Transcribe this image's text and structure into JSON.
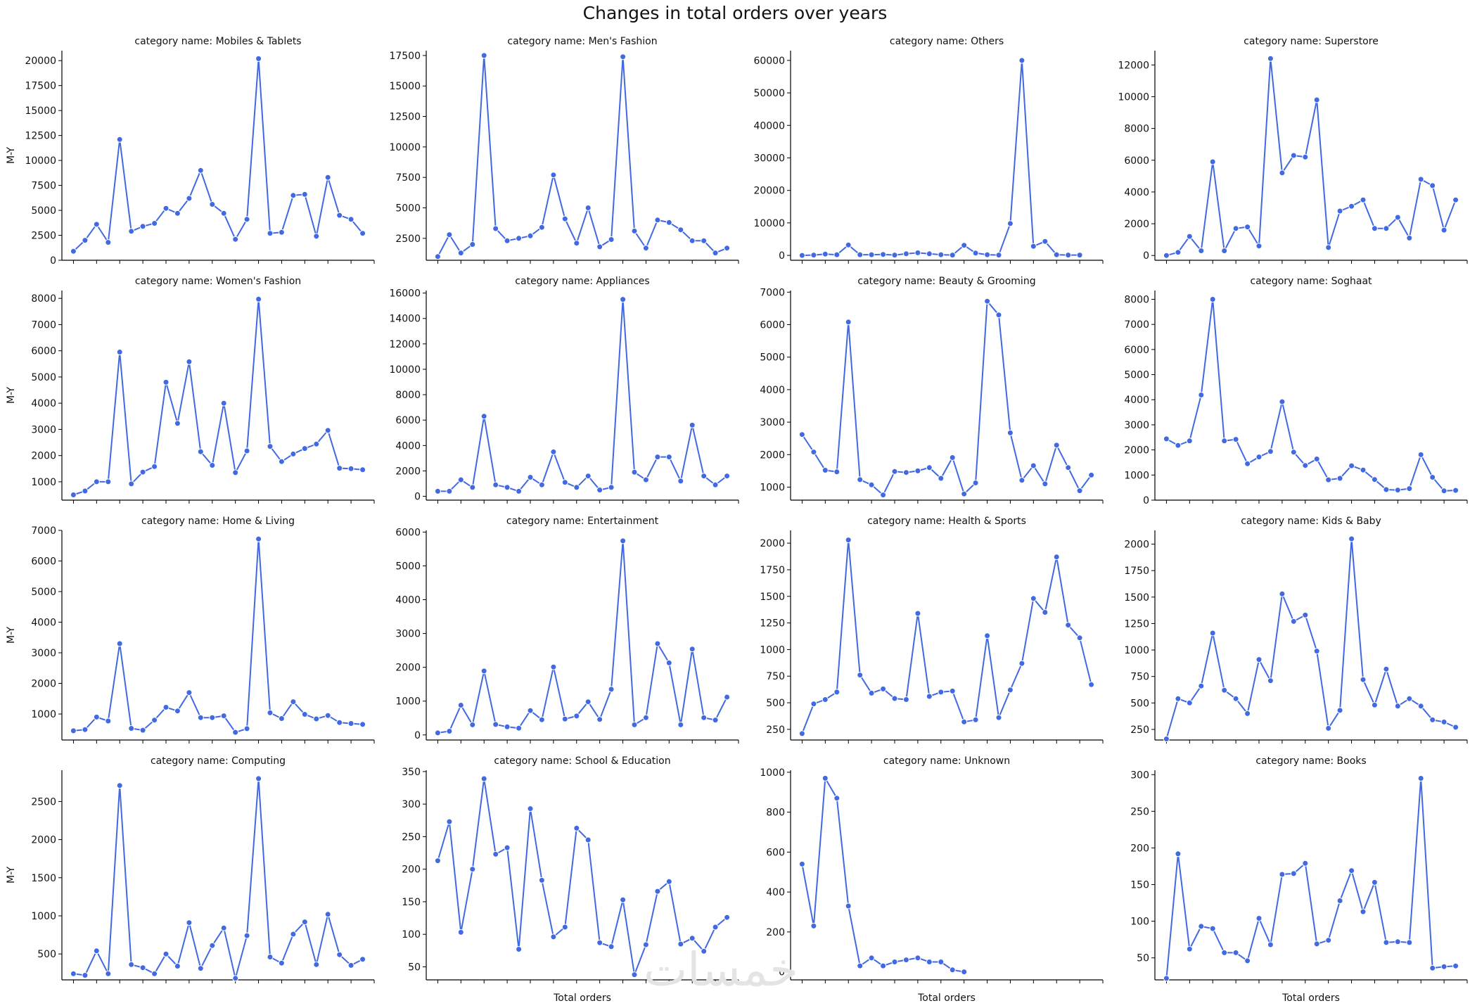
{
  "suptitle": "Changes in total orders over years",
  "watermark": "خمسات",
  "style": {
    "line_color": "#4169e1",
    "axis_color": "#000000"
  },
  "chart_data": [
    {
      "type": "line",
      "title": "category name: Mobiles & Tablets",
      "xlabel": "",
      "ylabel": "M-Y",
      "ylim": [
        0,
        21000
      ],
      "yticks": [
        0,
        2500,
        5000,
        7500,
        10000,
        12500,
        15000,
        17500,
        20000
      ],
      "values": [
        900,
        2000,
        3600,
        1800,
        12100,
        2900,
        3400,
        3700,
        5200,
        4700,
        6200,
        9000,
        5600,
        4700,
        2100,
        4100,
        20200,
        2700,
        2800,
        6500,
        6600,
        2400,
        8300,
        4500,
        4100,
        2700
      ]
    },
    {
      "type": "line",
      "title": "category name: Men's Fashion",
      "xlabel": "",
      "ylabel": "",
      "ylim": [
        700,
        17900
      ],
      "yticks": [
        2500,
        5000,
        7500,
        10000,
        12500,
        15000,
        17500
      ],
      "values": [
        1000,
        2800,
        1300,
        2000,
        17500,
        3300,
        2300,
        2500,
        2700,
        3400,
        7700,
        4100,
        2100,
        5000,
        1800,
        2400,
        17400,
        3100,
        1700,
        4000,
        3800,
        3200,
        2300,
        2300,
        1300,
        1700
      ]
    },
    {
      "type": "line",
      "title": "category name: Others",
      "xlabel": "",
      "ylabel": "",
      "ylim": [
        -1500,
        63000
      ],
      "yticks": [
        0,
        10000,
        20000,
        30000,
        40000,
        50000,
        60000
      ],
      "values": [
        0,
        100,
        400,
        200,
        3200,
        200,
        200,
        300,
        100,
        500,
        800,
        500,
        200,
        100,
        3100,
        700,
        200,
        100,
        9800,
        60000,
        2800,
        4300,
        200,
        100,
        100
      ]
    },
    {
      "type": "line",
      "title": "category name: Superstore",
      "xlabel": "",
      "ylabel": "",
      "ylim": [
        -300,
        12900
      ],
      "yticks": [
        0,
        2000,
        4000,
        6000,
        8000,
        10000,
        12000
      ],
      "values": [
        0,
        200,
        1200,
        300,
        5900,
        300,
        1700,
        1800,
        600,
        12400,
        5200,
        6300,
        6200,
        9800,
        500,
        2800,
        3100,
        3500,
        1700,
        1700,
        2400,
        1100,
        4800,
        4400,
        1600,
        3500
      ]
    },
    {
      "type": "line",
      "title": "category name: Women's Fashion",
      "xlabel": "",
      "ylabel": "M-Y",
      "ylim": [
        300,
        8300
      ],
      "yticks": [
        1000,
        2000,
        3000,
        4000,
        5000,
        6000,
        7000,
        8000
      ],
      "values": [
        500,
        650,
        1000,
        1000,
        5950,
        920,
        1370,
        1580,
        4800,
        3230,
        5580,
        2150,
        1630,
        4000,
        1350,
        2180,
        7970,
        2350,
        1770,
        2060,
        2270,
        2440,
        2960,
        1520,
        1500,
        1460
      ]
    },
    {
      "type": "line",
      "title": "category name: Appliances",
      "xlabel": "",
      "ylabel": "",
      "ylim": [
        -300,
        16200
      ],
      "yticks": [
        0,
        2000,
        4000,
        6000,
        8000,
        10000,
        12000,
        14000,
        16000
      ],
      "values": [
        400,
        400,
        1300,
        700,
        6300,
        900,
        700,
        400,
        1500,
        900,
        3500,
        1100,
        700,
        1600,
        500,
        700,
        15500,
        1900,
        1300,
        3100,
        3100,
        1200,
        5600,
        1600,
        900,
        1600
      ]
    },
    {
      "type": "line",
      "title": "category name: Beauty & Grooming",
      "xlabel": "",
      "ylabel": "",
      "ylim": [
        600,
        7050
      ],
      "yticks": [
        1000,
        2000,
        3000,
        4000,
        5000,
        6000,
        7000
      ],
      "values": [
        2620,
        2080,
        1520,
        1470,
        6080,
        1230,
        1070,
        760,
        1480,
        1450,
        1500,
        1600,
        1270,
        1910,
        790,
        1130,
        6720,
        6300,
        2670,
        1210,
        1660,
        1100,
        2290,
        1600,
        890,
        1370
      ]
    },
    {
      "type": "line",
      "title": "category name: Soghaat",
      "xlabel": "",
      "ylabel": "",
      "ylim": [
        0,
        8350
      ],
      "yticks": [
        0,
        1000,
        2000,
        3000,
        4000,
        5000,
        6000,
        7000,
        8000
      ],
      "values": [
        2440,
        2180,
        2360,
        4190,
        8000,
        2360,
        2420,
        1450,
        1720,
        1940,
        3920,
        1910,
        1380,
        1640,
        810,
        870,
        1370,
        1200,
        820,
        420,
        400,
        460,
        1810,
        910,
        370,
        390
      ]
    },
    {
      "type": "line",
      "title": "category name: Home & Living",
      "xlabel": "",
      "ylabel": "M-Y",
      "ylim": [
        150,
        7000
      ],
      "yticks": [
        1000,
        2000,
        3000,
        4000,
        5000,
        6000,
        7000
      ],
      "values": [
        450,
        490,
        900,
        770,
        3300,
        530,
        470,
        800,
        1220,
        1100,
        1700,
        880,
        880,
        940,
        400,
        520,
        6720,
        1040,
        850,
        1400,
        990,
        840,
        950,
        720,
        690,
        660
      ]
    },
    {
      "type": "line",
      "title": "category name: Entertainment",
      "xlabel": "",
      "ylabel": "",
      "ylim": [
        -150,
        6050
      ],
      "yticks": [
        0,
        1000,
        2000,
        3000,
        4000,
        5000,
        6000
      ],
      "values": [
        60,
        110,
        880,
        300,
        1890,
        310,
        240,
        200,
        720,
        450,
        2010,
        470,
        560,
        980,
        460,
        1350,
        5740,
        300,
        510,
        2700,
        2130,
        300,
        2540,
        510,
        440,
        1120
      ]
    },
    {
      "type": "line",
      "title": "category name: Health & Sports",
      "xlabel": "",
      "ylabel": "",
      "ylim": [
        150,
        2120
      ],
      "yticks": [
        250,
        500,
        750,
        1000,
        1250,
        1500,
        1750,
        2000
      ],
      "values": [
        210,
        490,
        530,
        600,
        2030,
        760,
        590,
        630,
        540,
        530,
        1340,
        560,
        600,
        610,
        320,
        340,
        1130,
        360,
        620,
        870,
        1480,
        1350,
        1870,
        1230,
        1110,
        670
      ]
    },
    {
      "type": "line",
      "title": "category name: Kids & Baby",
      "xlabel": "",
      "ylabel": "",
      "ylim": [
        150,
        2130
      ],
      "yticks": [
        250,
        500,
        750,
        1000,
        1250,
        1500,
        1750,
        2000
      ],
      "values": [
        160,
        540,
        500,
        660,
        1160,
        620,
        540,
        400,
        910,
        710,
        1530,
        1270,
        1330,
        990,
        260,
        430,
        2050,
        720,
        480,
        820,
        470,
        540,
        470,
        340,
        320,
        270
      ]
    },
    {
      "type": "line",
      "title": "category name: Computing",
      "xlabel": "",
      "ylabel": "M-Y",
      "ylim": [
        160,
        2910
      ],
      "yticks": [
        500,
        1000,
        1500,
        2000,
        2500
      ],
      "values": [
        240,
        220,
        540,
        240,
        2710,
        360,
        320,
        240,
        500,
        340,
        910,
        310,
        610,
        840,
        180,
        740,
        2800,
        460,
        380,
        760,
        920,
        360,
        1020,
        490,
        350,
        430
      ]
    },
    {
      "type": "line",
      "title": "category name: School & Education",
      "xlabel": "Total orders",
      "ylabel": "",
      "ylim": [
        30,
        352
      ],
      "yticks": [
        50,
        100,
        150,
        200,
        250,
        300,
        350
      ],
      "values": [
        213,
        273,
        103,
        200,
        339,
        223,
        233,
        77,
        293,
        183,
        96,
        111,
        263,
        245,
        87,
        81,
        153,
        38,
        84,
        166,
        181,
        85,
        94,
        74,
        111,
        126
      ]
    },
    {
      "type": "line",
      "title": "category name: Unknown",
      "xlabel": "Total orders",
      "ylabel": "",
      "ylim": [
        -40,
        1010
      ],
      "yticks": [
        0,
        200,
        400,
        600,
        800,
        1000
      ],
      "values": [
        540,
        230,
        970,
        870,
        330,
        30,
        70,
        30,
        50,
        60,
        70,
        50,
        50,
        10,
        0
      ]
    },
    {
      "type": "line",
      "title": "category name: Books",
      "xlabel": "Total orders",
      "ylabel": "",
      "ylim": [
        20,
        306
      ],
      "yticks": [
        50,
        100,
        150,
        200,
        250,
        300
      ],
      "values": [
        22,
        192,
        62,
        93,
        90,
        57,
        57,
        46,
        104,
        68,
        164,
        165,
        179,
        69,
        74,
        128,
        169,
        113,
        153,
        71,
        72,
        71,
        295,
        36,
        38,
        39
      ]
    }
  ]
}
